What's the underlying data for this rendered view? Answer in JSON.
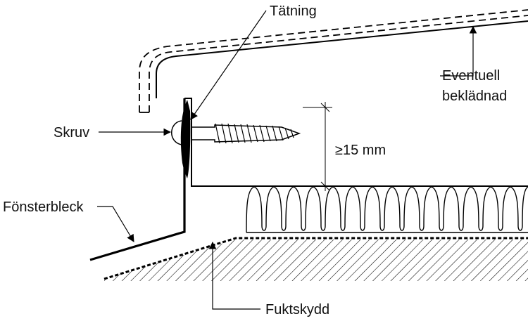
{
  "labels": {
    "sealing": "Tätning",
    "screw": "Skruv",
    "window_sill_flashing": "Fönsterbleck",
    "optional_cladding_line1": "Eventuell",
    "optional_cladding_line2": "beklädnad",
    "clearance": "≥15 mm",
    "moisture_barrier": "Fuktskydd"
  },
  "colors": {
    "stroke": "#000000",
    "background": "#ffffff"
  }
}
